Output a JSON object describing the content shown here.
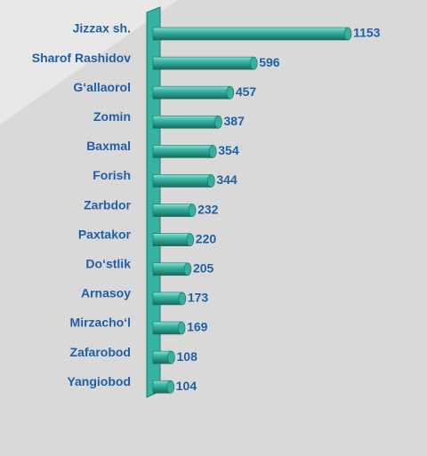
{
  "chart_data": {
    "type": "bar",
    "orientation": "horizontal",
    "categories": [
      "Jizzax sh.",
      "Sharof Rashidov",
      "G‘allaorol",
      "Zomin",
      "Baxmal",
      "Forish",
      "Zarbdor",
      "Paxtakor",
      "Do‘stlik",
      "Arnasoy",
      "Mirzacho‘l",
      "Zafarobod",
      "Yangiobod"
    ],
    "values": [
      1153,
      596,
      457,
      387,
      354,
      344,
      232,
      220,
      205,
      173,
      169,
      108,
      104
    ],
    "color": "#36b09e"
  }
}
